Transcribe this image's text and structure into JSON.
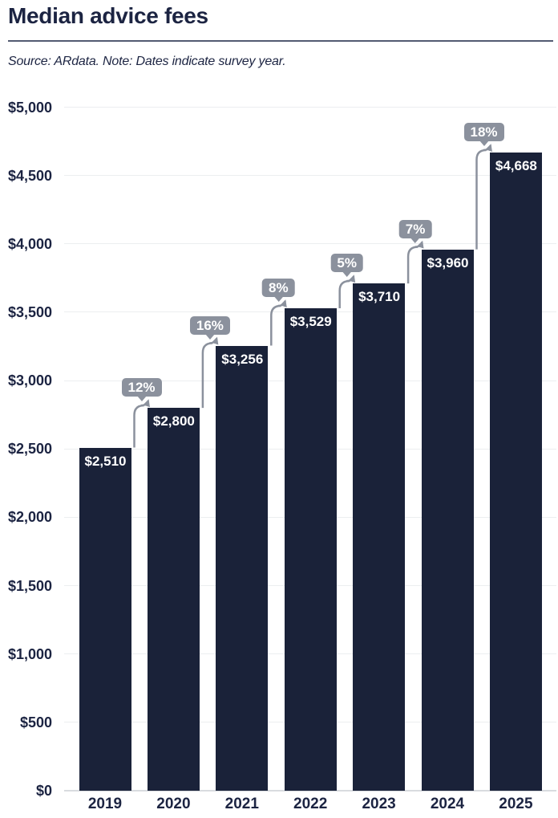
{
  "header": {
    "title": "Median advice fees",
    "source_note": "Source: ARdata.  Note: Dates indicate survey year."
  },
  "colors": {
    "bar": "#1a2239",
    "text_dark": "#1c2442",
    "badge_bg": "#8b919d",
    "badge_text": "#ffffff",
    "bar_label_text": "#ffffff",
    "gridline": "#eceef0",
    "baseline": "#d9dbdf",
    "divider": "#535b72"
  },
  "chart_data": {
    "type": "bar",
    "title": "Median advice fees",
    "categories": [
      "2019",
      "2020",
      "2021",
      "2022",
      "2023",
      "2024",
      "2025"
    ],
    "values": [
      2510,
      2800,
      3256,
      3529,
      3710,
      3960,
      4668
    ],
    "value_labels": [
      "$2,510",
      "$2,800",
      "$3,256",
      "$3,529",
      "$3,710",
      "$3,960",
      "$4,668"
    ],
    "pct_change_labels": [
      "12%",
      "16%",
      "8%",
      "5%",
      "7%",
      "18%"
    ],
    "xlabel": "",
    "ylabel": "",
    "ylim": [
      0,
      5000
    ],
    "y_tick_step": 500,
    "y_tick_labels": [
      "$0",
      "$500",
      "$1,000",
      "$1,500",
      "$2,000",
      "$2,500",
      "$3,000",
      "$3,500",
      "$4,000",
      "$4,500",
      "$5,000"
    ],
    "grid": true,
    "legend": false
  }
}
